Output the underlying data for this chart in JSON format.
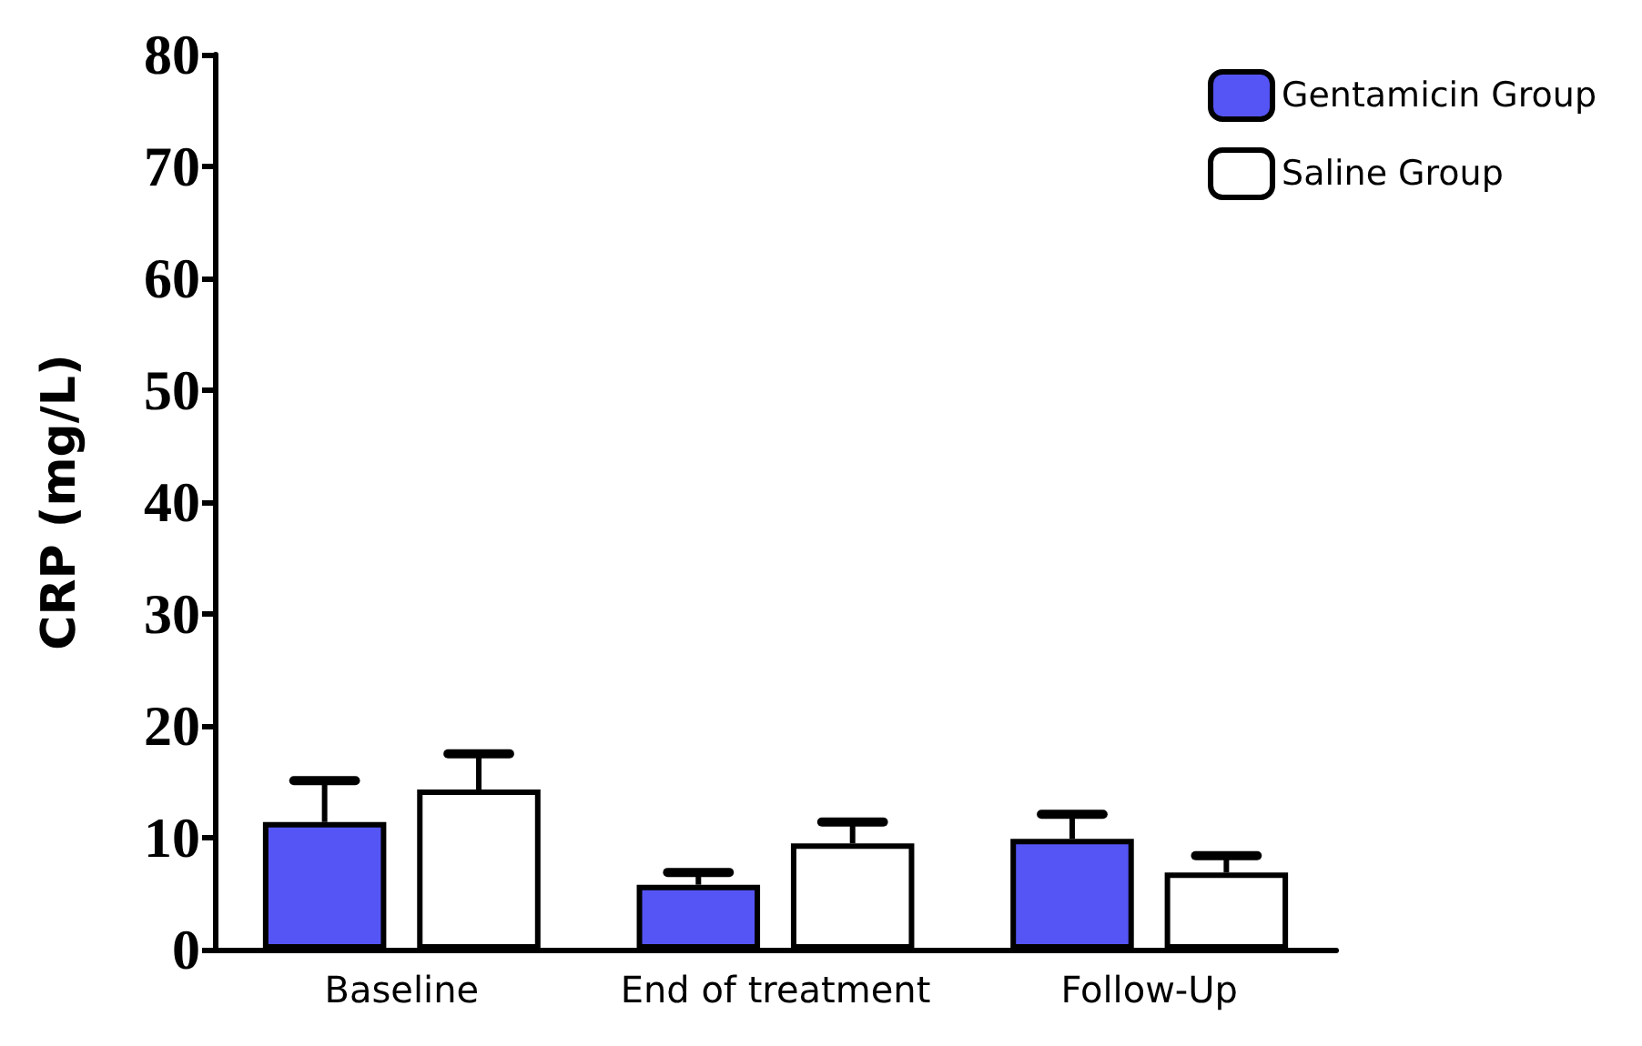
{
  "chart_data": {
    "type": "bar",
    "ylabel": "CRP (mg/L)",
    "categories": [
      "Baseline",
      "End of treatment",
      "Follow-Up"
    ],
    "series": [
      {
        "name": "Gentamicin Group",
        "color": "#5555f5",
        "values": [
          11.4,
          5.8,
          9.9
        ],
        "errors": [
          [
            11.4,
            15.1
          ],
          [
            5.8,
            6.9
          ],
          [
            9.9,
            12.1
          ]
        ]
      },
      {
        "name": "Saline Group",
        "color": "#ffffff",
        "values": [
          14.3,
          9.5,
          6.9
        ],
        "errors": [
          [
            14.3,
            17.5
          ],
          [
            9.5,
            11.4
          ],
          [
            6.9,
            8.4
          ]
        ]
      }
    ],
    "ylim": [
      0,
      80
    ],
    "yticks": [
      0,
      10,
      20,
      30,
      40,
      50,
      60,
      70,
      80
    ],
    "grid": false,
    "legend": "top right"
  }
}
